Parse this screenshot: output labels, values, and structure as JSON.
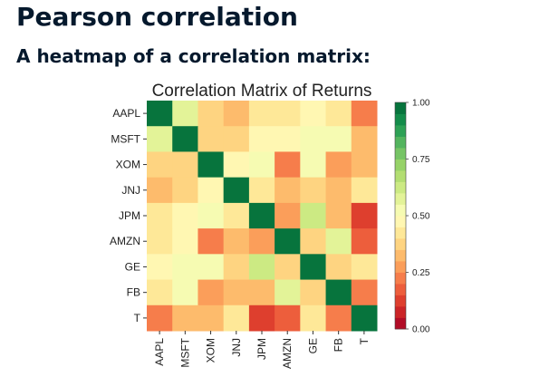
{
  "slide": {
    "title": "Pearson correlation",
    "subtitle": "A heatmap of a correlation matrix:"
  },
  "chart_data": {
    "type": "heatmap",
    "title": "Correlation Matrix of Returns",
    "categories": [
      "AAPL",
      "MSFT",
      "XOM",
      "JNJ",
      "JPM",
      "AMZN",
      "GE",
      "FB",
      "T"
    ],
    "values": [
      [
        1.0,
        0.55,
        0.35,
        0.33,
        0.4,
        0.42,
        0.45,
        0.44,
        0.2
      ],
      [
        0.55,
        1.0,
        0.35,
        0.38,
        0.46,
        0.48,
        0.52,
        0.5,
        0.3
      ],
      [
        0.35,
        0.35,
        1.0,
        0.48,
        0.52,
        0.22,
        0.52,
        0.25,
        0.32
      ],
      [
        0.33,
        0.38,
        0.48,
        1.0,
        0.4,
        0.3,
        0.38,
        0.3,
        0.4
      ],
      [
        0.4,
        0.46,
        0.52,
        0.4,
        1.0,
        0.25,
        0.62,
        0.3,
        0.1
      ],
      [
        0.42,
        0.48,
        0.22,
        0.3,
        0.25,
        1.0,
        0.35,
        0.55,
        0.18
      ],
      [
        0.45,
        0.52,
        0.52,
        0.38,
        0.62,
        0.35,
        1.0,
        0.35,
        0.42
      ],
      [
        0.44,
        0.5,
        0.25,
        0.3,
        0.3,
        0.55,
        0.35,
        1.0,
        0.2
      ],
      [
        0.2,
        0.3,
        0.32,
        0.4,
        0.1,
        0.18,
        0.42,
        0.2,
        1.0
      ]
    ],
    "colorbar": {
      "min": 0.0,
      "max": 1.0,
      "ticks": [
        "0.00",
        "0.25",
        "0.50",
        "0.75",
        "1.00"
      ],
      "colormap": "RdYlGn",
      "steps": 20
    },
    "grid": false
  }
}
